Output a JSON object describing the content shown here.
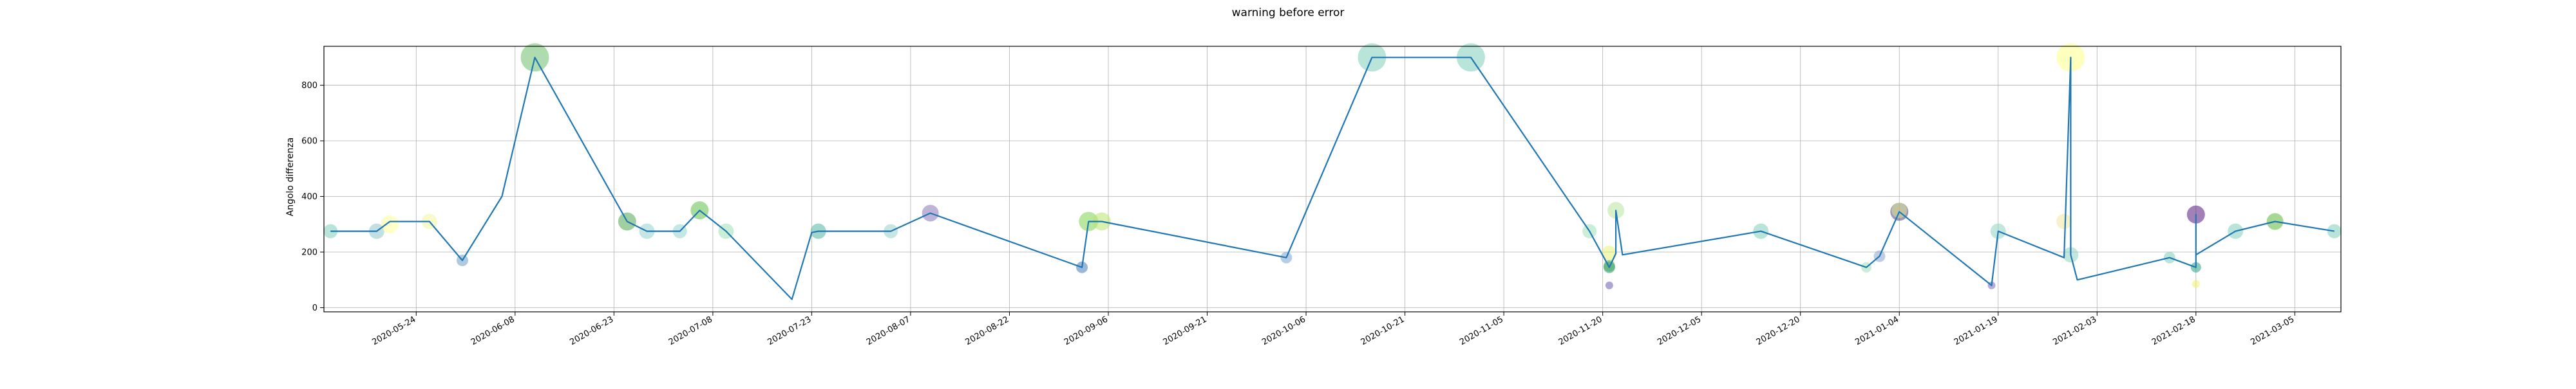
{
  "chart_data": {
    "type": "line",
    "title": "warning before error",
    "xlabel": "",
    "ylabel": "Angolo differenza",
    "grid": true,
    "xlim": [
      "2020-05-10",
      "2021-03-12"
    ],
    "ylim": [
      -15,
      940
    ],
    "x_ticks": [
      "2020-05-24",
      "2020-06-08",
      "2020-06-23",
      "2020-07-08",
      "2020-07-23",
      "2020-08-07",
      "2020-08-22",
      "2020-09-06",
      "2020-09-21",
      "2020-10-06",
      "2020-10-21",
      "2020-11-05",
      "2020-11-20",
      "2020-12-05",
      "2020-12-20",
      "2021-01-04",
      "2021-01-19",
      "2021-02-03",
      "2021-02-18",
      "2021-03-05"
    ],
    "y_ticks": [
      "0",
      "200",
      "400",
      "600",
      "800"
    ],
    "y_tick_values": [
      0,
      200,
      400,
      600,
      800
    ],
    "line_color": "#1f77b4",
    "series": [
      {
        "x": [
          "2020-05-11",
          "2020-05-18",
          "2020-05-20",
          "2020-05-26",
          "2020-05-31",
          "2020-06-06",
          "2020-06-11",
          "2020-06-25",
          "2020-06-28",
          "2020-07-03",
          "2020-07-06",
          "2020-07-10",
          "2020-07-20",
          "2020-07-23",
          "2020-07-24",
          "2020-08-04",
          "2020-08-10",
          "2020-09-02",
          "2020-09-03",
          "2020-09-05",
          "2020-10-03",
          "2020-10-16",
          "2020-10-31",
          "2020-11-18",
          "2020-11-21",
          "2020-11-22",
          "2020-11-22",
          "2020-11-23",
          "2020-12-14",
          "2020-12-30",
          "2021-01-01",
          "2021-01-04",
          "2021-01-18",
          "2021-01-19",
          "2021-01-29",
          "2021-01-30",
          "2021-01-30",
          "2021-01-31",
          "2021-02-14",
          "2021-02-18",
          "2021-02-18",
          "2021-02-18",
          "2021-02-24",
          "2021-03-02",
          "2021-03-11"
        ],
        "y": [
          275,
          275,
          310,
          310,
          170,
          400,
          900,
          310,
          275,
          275,
          350,
          275,
          30,
          270,
          275,
          275,
          340,
          145,
          310,
          310,
          180,
          900,
          900,
          275,
          145,
          195,
          350,
          190,
          275,
          145,
          185,
          345,
          80,
          275,
          180,
          900,
          190,
          100,
          180,
          145,
          335,
          190,
          275,
          310,
          275
        ]
      }
    ],
    "bubbles": {
      "x": [
        "2020-05-11",
        "2020-05-18",
        "2020-05-20",
        "2020-05-26",
        "2020-05-31",
        "2020-06-11",
        "2020-06-25",
        "2020-06-28",
        "2020-07-03",
        "2020-07-06",
        "2020-07-10",
        "2020-07-24",
        "2020-08-04",
        "2020-08-10",
        "2020-09-02",
        "2020-09-03",
        "2020-09-05",
        "2020-10-03",
        "2020-10-16",
        "2020-10-31",
        "2020-11-18",
        "2020-11-21",
        "2020-11-21",
        "2020-11-21",
        "2020-11-21",
        "2020-11-22",
        "2020-12-14",
        "2020-12-30",
        "2021-01-01",
        "2021-01-04",
        "2021-01-04",
        "2021-01-18",
        "2021-01-19",
        "2021-01-29",
        "2021-01-30",
        "2021-01-30",
        "2021-02-14",
        "2021-02-18",
        "2021-02-18",
        "2021-02-18",
        "2021-02-24",
        "2021-03-02",
        "2021-03-11"
      ],
      "y": [
        275,
        275,
        300,
        310,
        170,
        900,
        310,
        275,
        275,
        350,
        275,
        275,
        275,
        340,
        145,
        310,
        310,
        180,
        900,
        900,
        275,
        145,
        195,
        150,
        80,
        350,
        275,
        145,
        185,
        345,
        350,
        80,
        275,
        310,
        900,
        190,
        180,
        145,
        335,
        85,
        275,
        310,
        275
      ],
      "r": [
        11,
        12,
        14,
        12,
        9,
        22,
        14,
        12,
        11,
        14,
        12,
        12,
        11,
        13,
        9,
        15,
        14,
        9,
        22,
        22,
        11,
        9,
        12,
        9,
        6,
        13,
        12,
        8,
        9,
        14,
        12,
        6,
        12,
        12,
        22,
        12,
        9,
        8,
        14,
        6,
        12,
        13,
        11
      ],
      "colors": [
        "#7fcdbb",
        "#8fc4c8",
        "#ffff99",
        "#f0f8a0",
        "#6b9fc4",
        "#6cc06c",
        "#52a852",
        "#93d1cf",
        "#93d1cf",
        "#5cbf4a",
        "#9ee0b4",
        "#52b5a1",
        "#99d0cc",
        "#8b77b8",
        "#4a7ab8",
        "#7fd34e",
        "#b8e66e",
        "#7da4cf",
        "#7fcdbb",
        "#7fcdbb",
        "#9ee0b4",
        "#2a9d6c",
        "#e8f07a",
        "#4fa861",
        "#6a5bb0",
        "#b8e6a0",
        "#7fcdbb",
        "#9ee0b4",
        "#8aa6d0",
        "#55457f",
        "#d8e890",
        "#7a6ab8",
        "#8ed4c4",
        "#f0e89e",
        "#ffff88",
        "#8fd4c0",
        "#7fcdbb",
        "#2aa082",
        "#551a7e",
        "#f0f06a",
        "#7fcdbb",
        "#5cb83c",
        "#7fcdbb"
      ]
    }
  }
}
